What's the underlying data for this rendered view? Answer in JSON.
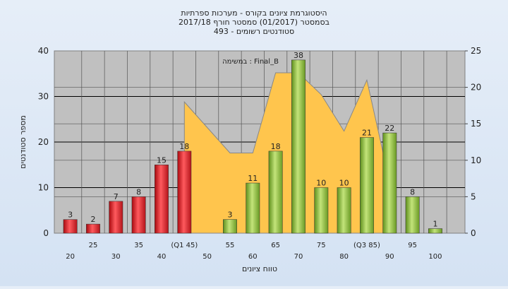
{
  "chart_data": {
    "type": "bar",
    "title": "היסטוגרמת ציונים בקורס - מערכות ספרתיות",
    "subtitle_1": "בסמסטר  (01/2017)  סמסטר חורף  2017/18",
    "subtitle_2": "סטודנטים רשומים - 493",
    "annotation": "במשימה : Final_B",
    "xlabel": "טווח ציונים",
    "ylabel": "מספר סטודנטים",
    "ylim": [
      0,
      40
    ],
    "y_ticks": [
      0,
      10,
      20,
      30,
      40
    ],
    "y2lim": [
      0,
      25
    ],
    "y2_ticks": [
      0,
      5,
      10,
      15,
      20,
      25
    ],
    "categories": [
      "20",
      "25",
      "30",
      "35",
      "40",
      "(Q1 45)",
      "50",
      "55",
      "60",
      "65",
      "70",
      "75",
      "80",
      "(Q3 85)",
      "90",
      "95",
      "100"
    ],
    "values": [
      3,
      2,
      7,
      8,
      15,
      18,
      0,
      3,
      11,
      18,
      38,
      10,
      10,
      21,
      22,
      8,
      1
    ],
    "value_labels": [
      "3",
      "2",
      "7",
      "8",
      "15",
      "18",
      "",
      "3",
      "11",
      "18",
      "38",
      "10",
      "10",
      "21",
      "22",
      "8",
      "1"
    ],
    "bar_color_group": [
      "red",
      "red",
      "red",
      "red",
      "red",
      "red",
      "red",
      "green",
      "green",
      "green",
      "green",
      "green",
      "green",
      "green",
      "green",
      "green",
      "green"
    ],
    "area_series_x": [
      "(Q1 45)",
      "55",
      "60",
      "65",
      "70",
      "75",
      "80",
      "(Q3 85)",
      "90"
    ],
    "area_series_values": [
      18,
      11,
      11,
      22,
      22,
      19,
      14,
      21,
      7
    ],
    "colors": {
      "plot_bg": "#c0c0c0",
      "grid": "#000000",
      "area_fill": "#ffc54d",
      "red_bar": "#e8262a",
      "green_bar": "#8fc23a"
    },
    "grid": true,
    "legend": "none"
  }
}
